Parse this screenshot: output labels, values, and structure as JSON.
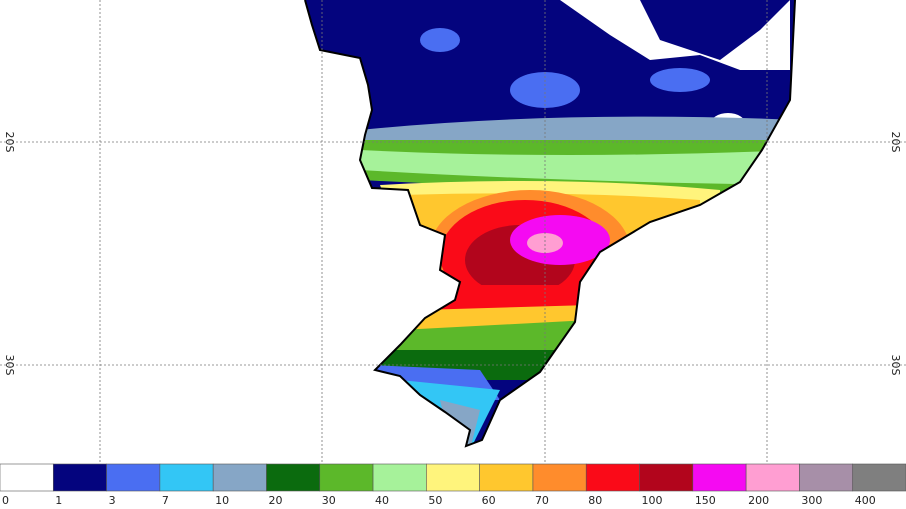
{
  "map": {
    "latitude_labels": [
      "20S",
      "30S"
    ]
  },
  "legend": {
    "labels": [
      0,
      1,
      3,
      7,
      10,
      20,
      30,
      40,
      50,
      60,
      70,
      80,
      100,
      150,
      200,
      300,
      400
    ],
    "colors": [
      "#ffffff",
      "#04047e",
      "#4a6ef2",
      "#33c6f5",
      "#86a6c6",
      "#0b6b0e",
      "#5cb82a",
      "#a6f29a",
      "#fff47c",
      "#ffc72e",
      "#ff8c2c",
      "#fa0a18",
      "#b2051c",
      "#f50af2",
      "#ff9ed2",
      "#a78fa8",
      "#7f7f7f"
    ]
  }
}
